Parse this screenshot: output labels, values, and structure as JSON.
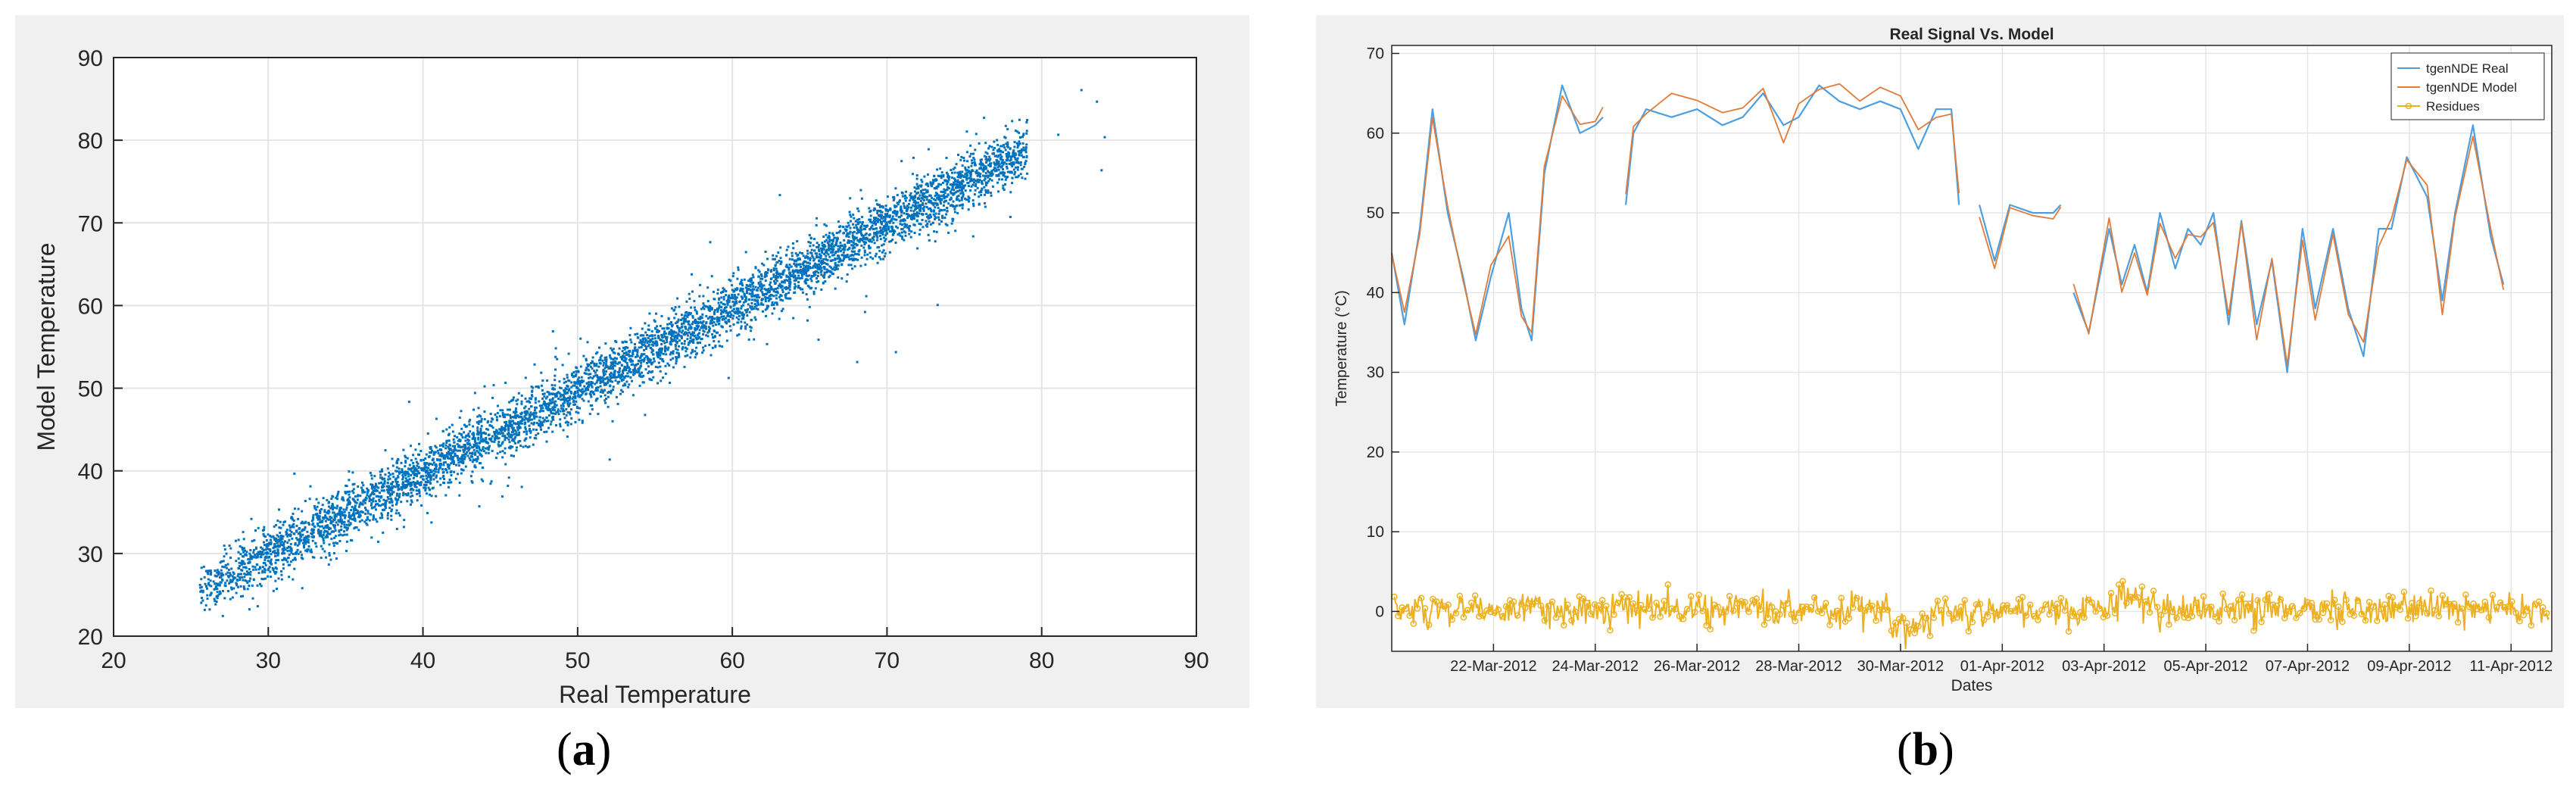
{
  "captions": {
    "a": "a",
    "b": "b"
  },
  "chart_data": [
    {
      "type": "scatter",
      "title": "",
      "xlabel": "Real Temperature",
      "ylabel": "Model Temperature",
      "xlim": [
        20,
        90
      ],
      "ylim": [
        20,
        90
      ],
      "xticks": [
        20,
        30,
        40,
        50,
        60,
        70,
        80,
        90
      ],
      "yticks": [
        20,
        30,
        40,
        50,
        60,
        70,
        80,
        90
      ],
      "grid": true,
      "marker_color": "#0072bd",
      "relationship": "model ≈ real",
      "x_range_of_points": [
        24.5,
        84
      ],
      "spread_std": 1.6,
      "sample_outliers": [
        [
          82.5,
          86.2
        ],
        [
          83.5,
          84.8
        ],
        [
          84,
          80.5
        ],
        [
          83.8,
          76.5
        ],
        [
          81,
          80.8
        ],
        [
          73.2,
          60.2
        ],
        [
          70.5,
          54.5
        ],
        [
          68,
          53.3
        ],
        [
          52,
          41.5
        ],
        [
          44.5,
          50.5
        ],
        [
          63,
          73.5
        ],
        [
          75.5,
          68.5
        ],
        [
          65.5,
          56
        ],
        [
          58.5,
          67.8
        ]
      ]
    },
    {
      "type": "line",
      "title": "Real Signal Vs. Model",
      "xlabel": "Dates",
      "ylabel": "Temperature (°C)",
      "ylim": [
        -5,
        71
      ],
      "yticks": [
        0,
        10,
        20,
        30,
        40,
        50,
        60,
        70
      ],
      "xlim_days": [
        0,
        22.8
      ],
      "x_tick_labels": [
        "22-Mar-2012",
        "24-Mar-2012",
        "26-Mar-2012",
        "28-Mar-2012",
        "30-Mar-2012",
        "01-Apr-2012",
        "03-Apr-2012",
        "05-Apr-2012",
        "07-Apr-2012",
        "09-Apr-2012",
        "11-Apr-2012"
      ],
      "x_tick_days": [
        2,
        4,
        6,
        8,
        10,
        12,
        14,
        16,
        18,
        20,
        22
      ],
      "legend_position": "top-right",
      "grid": true,
      "series": [
        {
          "name": "tgenNDE Real",
          "color": "#4d9fe0",
          "points": [
            [
              0,
              45
            ],
            [
              0.25,
              36
            ],
            [
              0.55,
              48
            ],
            [
              0.8,
              63
            ],
            [
              1.1,
              50
            ],
            [
              1.4,
              42
            ],
            [
              1.65,
              34
            ],
            [
              1.95,
              42
            ],
            [
              2.3,
              50
            ],
            [
              2.55,
              38
            ],
            [
              2.75,
              34
            ],
            [
              3.0,
              55
            ],
            [
              3.35,
              66
            ],
            [
              3.7,
              60
            ],
            [
              4.0,
              61
            ],
            [
              4.15,
              62
            ],
            null,
            [
              4.6,
              51
            ],
            [
              4.75,
              60
            ],
            [
              5.0,
              63
            ],
            [
              5.5,
              62
            ],
            [
              6.0,
              63
            ],
            [
              6.5,
              61
            ],
            [
              6.9,
              62
            ],
            [
              7.3,
              65
            ],
            [
              7.7,
              61
            ],
            [
              8.0,
              62
            ],
            [
              8.4,
              66
            ],
            [
              8.8,
              64
            ],
            [
              9.2,
              63
            ],
            [
              9.6,
              64
            ],
            [
              10.0,
              63
            ],
            [
              10.35,
              58
            ],
            [
              10.7,
              63
            ],
            [
              11.0,
              63
            ],
            [
              11.15,
              51
            ],
            null,
            [
              11.55,
              51
            ],
            [
              11.85,
              44
            ],
            [
              12.15,
              51
            ],
            [
              12.6,
              50
            ],
            [
              13.0,
              50
            ],
            [
              13.15,
              51
            ],
            null,
            [
              13.4,
              40
            ],
            [
              13.7,
              35
            ],
            [
              14.1,
              48
            ],
            [
              14.35,
              41
            ],
            [
              14.6,
              46
            ],
            [
              14.85,
              40
            ],
            [
              15.1,
              50
            ],
            [
              15.4,
              43
            ],
            [
              15.65,
              48
            ],
            [
              15.9,
              46
            ],
            [
              16.15,
              50
            ],
            [
              16.45,
              36
            ],
            [
              16.7,
              49
            ],
            [
              17.0,
              36
            ],
            [
              17.3,
              44
            ],
            [
              17.6,
              30
            ],
            [
              17.9,
              48
            ],
            [
              18.15,
              38
            ],
            [
              18.5,
              48
            ],
            [
              18.8,
              38
            ],
            [
              19.1,
              32
            ],
            [
              19.4,
              48
            ],
            [
              19.65,
              48
            ],
            [
              19.95,
              57
            ],
            [
              20.35,
              52
            ],
            [
              20.65,
              39
            ],
            [
              20.9,
              50
            ],
            [
              21.25,
              61
            ],
            [
              21.6,
              47
            ],
            [
              21.85,
              41
            ]
          ]
        },
        {
          "name": "tgenNDE Model",
          "color": "#e07b39",
          "points": [
            [
              0,
              44
            ],
            [
              0.25,
              37
            ],
            [
              0.55,
              47
            ],
            [
              0.8,
              62
            ],
            [
              1.1,
              51
            ],
            [
              1.4,
              41
            ],
            [
              1.65,
              35
            ],
            [
              1.95,
              43
            ],
            [
              2.3,
              48
            ],
            [
              2.55,
              37
            ],
            [
              2.75,
              35
            ],
            [
              3.0,
              56
            ],
            [
              3.35,
              65
            ],
            [
              3.7,
              61
            ],
            [
              4.0,
              61
            ],
            [
              4.15,
              62
            ],
            null,
            [
              4.6,
              52
            ],
            [
              4.75,
              61
            ],
            [
              5.0,
              62
            ],
            [
              5.5,
              63
            ],
            [
              6.0,
              64
            ],
            [
              6.5,
              62
            ],
            [
              6.9,
              63
            ],
            [
              7.3,
              66
            ],
            [
              7.7,
              60
            ],
            [
              8.0,
              63
            ],
            [
              8.4,
              65
            ],
            [
              8.8,
              65
            ],
            [
              9.2,
              64
            ],
            [
              9.6,
              65
            ],
            [
              10.0,
              64
            ],
            [
              10.35,
              60
            ],
            [
              10.7,
              62
            ],
            [
              11.0,
              63
            ],
            [
              11.15,
              52
            ],
            null,
            [
              11.55,
              50
            ],
            [
              11.85,
              43
            ],
            [
              12.15,
              50
            ],
            [
              12.6,
              49
            ],
            [
              13.0,
              49
            ],
            [
              13.15,
              50
            ],
            null,
            [
              13.4,
              41
            ],
            [
              13.7,
              34
            ],
            [
              14.1,
              49
            ],
            [
              14.35,
              40
            ],
            [
              14.6,
              45
            ],
            [
              14.85,
              40
            ],
            [
              15.1,
              49
            ],
            [
              15.4,
              44
            ],
            [
              15.65,
              47
            ],
            [
              15.9,
              47
            ],
            [
              16.15,
              49
            ],
            [
              16.45,
              37
            ],
            [
              16.7,
              48
            ],
            [
              17.0,
              35
            ],
            [
              17.3,
              45
            ],
            [
              17.6,
              31
            ],
            [
              17.9,
              47
            ],
            [
              18.15,
              37
            ],
            [
              18.5,
              47
            ],
            [
              18.8,
              37
            ],
            [
              19.1,
              33
            ],
            [
              19.4,
              47
            ],
            [
              19.65,
              49
            ],
            [
              19.95,
              57
            ],
            [
              20.35,
              53
            ],
            [
              20.65,
              38
            ],
            [
              20.9,
              49
            ],
            [
              21.25,
              60
            ],
            [
              21.6,
              48
            ],
            [
              21.85,
              40
            ]
          ]
        },
        {
          "name": "Residues",
          "color": "#edb120"
        }
      ]
    }
  ]
}
